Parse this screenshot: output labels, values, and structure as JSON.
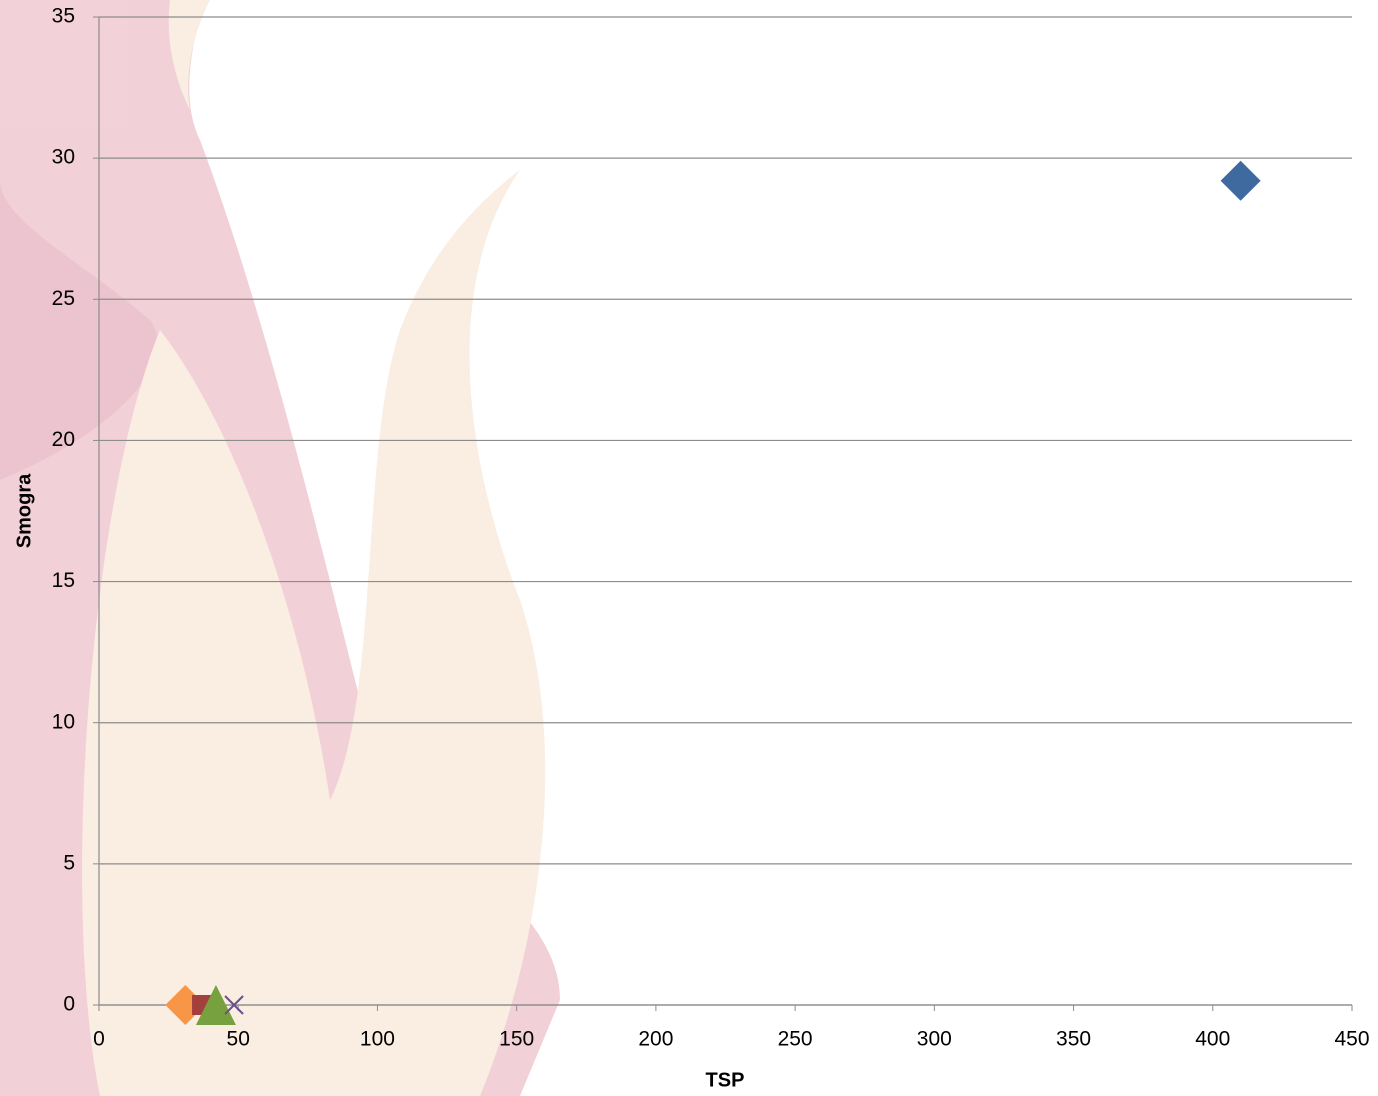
{
  "chart_data": {
    "type": "scatter",
    "xlabel": "TSP",
    "ylabel": "Smogra",
    "xlim": [
      0,
      450
    ],
    "xticks": [
      0,
      50,
      100,
      150,
      200,
      250,
      300,
      350,
      400,
      450
    ],
    "ylim": [
      0,
      35
    ],
    "yticks": [
      0,
      5,
      10,
      15,
      20,
      25,
      30,
      35
    ],
    "grid": true,
    "series": [
      {
        "color": "#3f6aa0",
        "marker": "diamond",
        "x": [
          410
        ],
        "values": [
          29.2
        ]
      },
      {
        "color": "#f79646",
        "marker": "diamond",
        "x": [
          31
        ],
        "values": [
          0
        ]
      },
      {
        "color": "#a3403d",
        "marker": "square",
        "x": [
          37
        ],
        "values": [
          0
        ]
      },
      {
        "color": "#77a03f",
        "marker": "triangle",
        "x": [
          42
        ],
        "values": [
          0
        ]
      },
      {
        "color": "#6b4f8a",
        "marker": "x",
        "x": [
          48.5
        ],
        "values": [
          0
        ]
      }
    ]
  }
}
